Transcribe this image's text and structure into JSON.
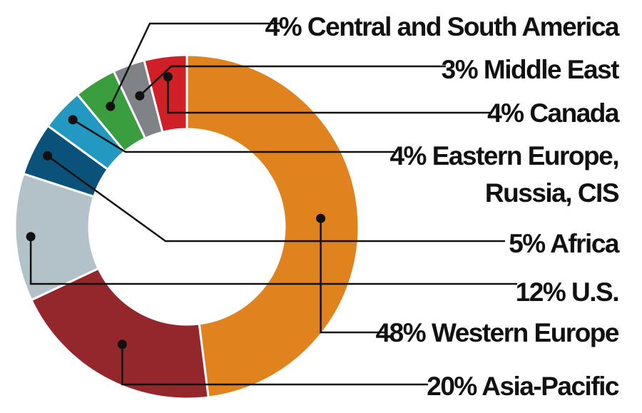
{
  "chart_data": {
    "type": "pie",
    "variant": "donut",
    "start_angle_deg": 0,
    "direction": "clockwise",
    "slices": [
      {
        "label": "Western Europe",
        "value": 48,
        "display": "48% Western Europe",
        "color": "#E0821E"
      },
      {
        "label": "Asia-Pacific",
        "value": 20,
        "display": "20% Asia-Pacific",
        "color": "#93272C"
      },
      {
        "label": "U.S.",
        "value": 12,
        "display": "12% U.S.",
        "color": "#B3C2C9"
      },
      {
        "label": "Africa",
        "value": 5,
        "display": "5% Africa",
        "color": "#0B527A"
      },
      {
        "label": "Eastern Europe, Russia, CIS",
        "value": 4,
        "display": [
          "4% Eastern Europe,",
          "Russia, CIS"
        ],
        "color": "#2398C0"
      },
      {
        "label": "Central and South America",
        "value": 4,
        "display": "4% Central and South America",
        "color": "#3A9D3E"
      },
      {
        "label": "Middle East",
        "value": 3,
        "display": "3% Middle East",
        "color": "#7F8387"
      },
      {
        "label": "Canada",
        "value": 4,
        "display": "4% Canada",
        "color": "#D01F27"
      }
    ]
  }
}
